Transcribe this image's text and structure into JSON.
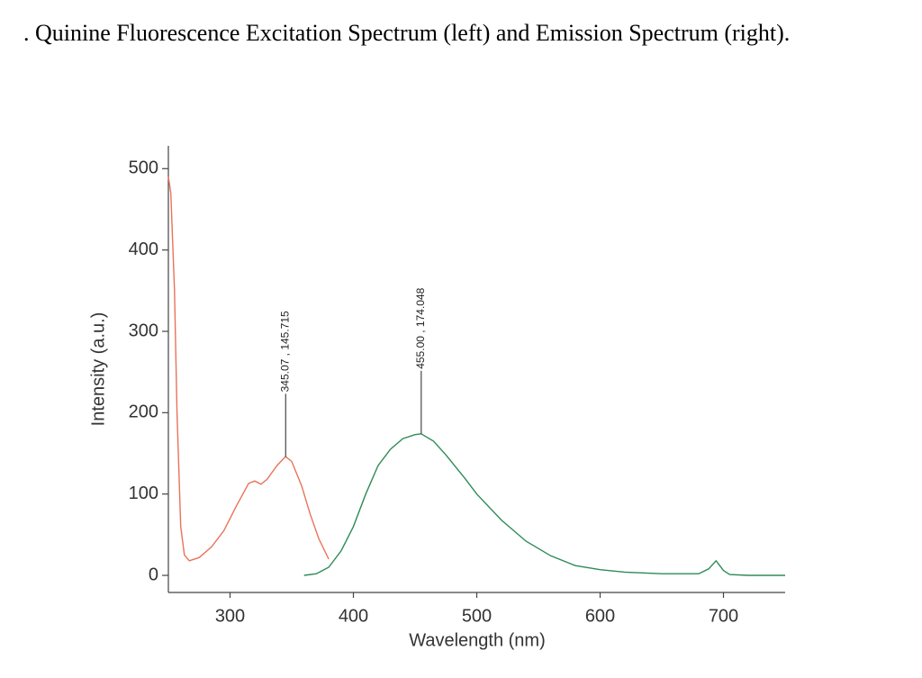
{
  "chart_data": {
    "type": "line",
    "title": ". Quinine Fluorescence Excitation Spectrum (left) and Emission Spectrum (right).",
    "x_label": "Wavelength (nm)",
    "y_label": "Intensity (a.u.)",
    "xlim": [
      250,
      750
    ],
    "ylim": [
      -21,
      528
    ],
    "xticks": [
      300,
      400,
      500,
      600,
      700
    ],
    "yticks": [
      0,
      100,
      200,
      300,
      400,
      500
    ],
    "grid": false,
    "series": [
      {
        "color": "#e8735a",
        "x": [
          250,
          252,
          255,
          257,
          260,
          263,
          267,
          275,
          285,
          295,
          305,
          315,
          320,
          325,
          330,
          338,
          345,
          350,
          358,
          365,
          372,
          380
        ],
        "values": [
          490,
          470,
          350,
          200,
          60,
          25,
          18,
          22,
          35,
          55,
          85,
          113,
          116,
          112,
          118,
          135,
          146,
          140,
          110,
          75,
          45,
          20
        ]
      },
      {
        "color": "#2e8b57",
        "x": [
          360,
          370,
          380,
          390,
          400,
          410,
          420,
          430,
          440,
          450,
          455,
          465,
          475,
          490,
          500,
          520,
          540,
          560,
          580,
          600,
          620,
          650,
          680,
          688,
          694,
          700,
          705,
          720,
          750
        ],
        "values": [
          0,
          2,
          10,
          30,
          60,
          100,
          135,
          155,
          168,
          173,
          174,
          165,
          148,
          120,
          100,
          68,
          42,
          24,
          12,
          7,
          4,
          2,
          2,
          8,
          18,
          6,
          1,
          0,
          0
        ]
      }
    ],
    "annotations": [
      {
        "x": 345.07,
        "y": 145.715,
        "text": "345.07 , 145.715"
      },
      {
        "x": 455.0,
        "y": 174.048,
        "text": "455.00 , 174.048"
      }
    ]
  }
}
